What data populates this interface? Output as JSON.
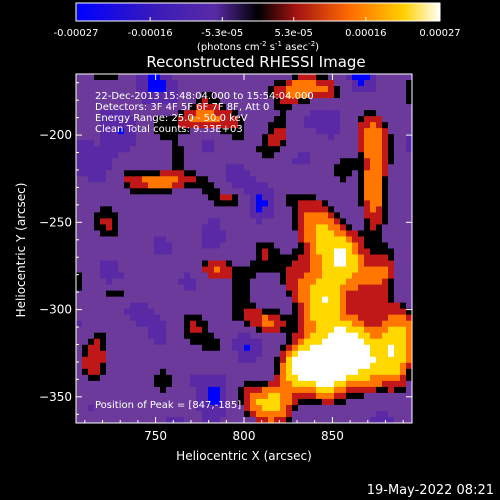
{
  "colorbar": {
    "tick_labels": [
      "-0.00027",
      "-0.00016",
      "-5.3e-05",
      "5.3e-05",
      "0.00016",
      "0.00027"
    ],
    "tick_values": [
      -0.00027,
      -0.00016,
      -5.3e-05,
      5.3e-05,
      0.00016,
      0.00027
    ],
    "range": [
      -0.00027,
      0.00027
    ],
    "unit_base": "(photons cm",
    "unit_exp1": "-2",
    "unit_mid": " s",
    "unit_exp2": "-1",
    "unit_mid2": " asec",
    "unit_exp3": "-2",
    "unit_end": ")"
  },
  "chart_data": {
    "type": "heatmap",
    "title": "Reconstructed RHESSI Image",
    "xlabel": "Heliocentric X (arcsec)",
    "ylabel": "Heliocentric Y (arcsec)",
    "xlim": [
      705,
      895
    ],
    "ylim": [
      -365,
      -165
    ],
    "x_ticks": [
      750,
      800,
      850
    ],
    "y_ticks": [
      -200,
      -250,
      -300,
      -350
    ],
    "x_tick_labels": [
      "750",
      "800",
      "850"
    ],
    "y_tick_labels": [
      "−200",
      "−250",
      "−300",
      "−350"
    ],
    "annotations": [
      "22-Dec-2013 15:48:04.000 to 15:54:04.000",
      "Detectors: 3F 4F 5F 6F 7F 8F, Att 0",
      "Energy Range: 25.0 - 50.0 keV",
      "Clean    Total counts: 9.33E+03"
    ],
    "peak_label": "Position of Peak = [847,-185]",
    "peak": [
      847,
      -185
    ],
    "colormap": [
      "#0000ff",
      "#5a2aa6",
      "#6b3a9a",
      "#000000",
      "#c01818",
      "#ff7700",
      "#ffd800",
      "#ffffff"
    ]
  },
  "footer": {
    "date": "19-May-2022 08:21"
  }
}
